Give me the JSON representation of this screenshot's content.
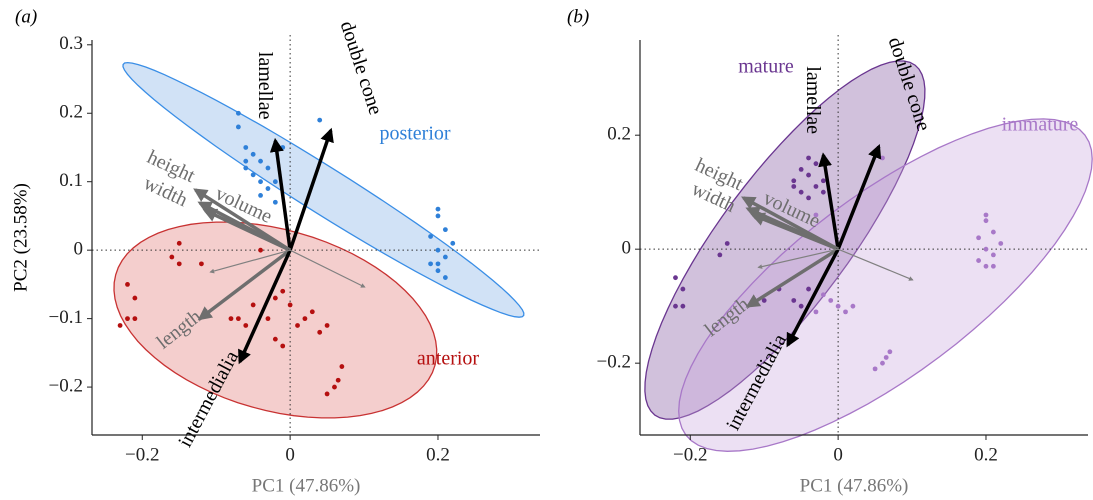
{
  "chart_data": [
    {
      "type": "biplot",
      "panel_label": "(a)",
      "xlabel": "PC1 (47.86%)",
      "ylabel": "PC2 (23.58%)",
      "xlim": [
        -0.268,
        0.338
      ],
      "ylim": [
        -0.27,
        0.307
      ],
      "xticks": [
        {
          "value": -0.2,
          "label": "−0.2"
        },
        0,
        0.2
      ],
      "yticks": [
        {
          "value": -0.2,
          "label": "−0.2"
        },
        {
          "value": -0.1,
          "label": "−0.1"
        },
        0,
        0.1,
        0.2,
        0.3
      ],
      "zero_lines": true,
      "series": [
        {
          "name": "posterior",
          "color": "#2f80d8",
          "fill": "#c9ddf4",
          "stroke": "#3a8ee6",
          "x": [
            -0.07,
            -0.07,
            -0.06,
            -0.05,
            -0.04,
            -0.06,
            -0.03,
            -0.05,
            -0.04,
            -0.02,
            -0.03,
            -0.04,
            -0.02,
            -0.06,
            -0.01,
            0.04,
            0.2,
            0.2,
            0.21,
            0.19,
            0.22,
            0.2,
            0.21,
            0.19,
            0.2,
            0.21,
            0.2
          ],
          "y": [
            0.2,
            0.18,
            0.15,
            0.14,
            0.13,
            0.13,
            0.12,
            0.11,
            0.1,
            0.1,
            0.09,
            0.08,
            0.07,
            0.12,
            0.15,
            0.19,
            0.06,
            0.05,
            0.03,
            0.02,
            0.01,
            0.0,
            -0.01,
            -0.02,
            -0.03,
            -0.04,
            -0.02
          ],
          "ellipse": {
            "cx": 0.045,
            "cy": 0.088,
            "ax": 0.269,
            "ay": -0.175,
            "bx": -0.035,
            "by": 0.063
          }
        },
        {
          "name": "anterior",
          "color": "#b50f0f",
          "fill": "#f2c6c4",
          "stroke": "#c83232",
          "x": [
            -0.15,
            -0.16,
            -0.15,
            -0.12,
            -0.22,
            -0.21,
            -0.22,
            -0.21,
            -0.23,
            -0.08,
            -0.07,
            -0.06,
            -0.05,
            -0.03,
            -0.02,
            -0.01,
            0.0,
            0.01,
            0.02,
            0.03,
            0.05,
            0.04,
            -0.01,
            -0.02,
            0.07,
            0.065,
            0.06,
            0.05,
            -0.04
          ],
          "y": [
            0.01,
            -0.01,
            -0.02,
            -0.02,
            -0.05,
            -0.07,
            -0.1,
            -0.1,
            -0.11,
            -0.1,
            -0.1,
            -0.11,
            -0.08,
            -0.1,
            -0.07,
            -0.06,
            -0.08,
            -0.11,
            -0.1,
            -0.09,
            -0.11,
            -0.12,
            -0.14,
            -0.13,
            -0.17,
            -0.19,
            -0.2,
            -0.21,
            0.0
          ],
          "ellipse": {
            "cx": -0.02,
            "cy": -0.102,
            "ax": 0.216,
            "ay": -0.066,
            "bx": -0.032,
            "by": -0.127
          }
        }
      ],
      "loadings": [
        {
          "name": "lamellae",
          "x": -0.02,
          "y": 0.16,
          "color": "#000000",
          "weight": "bold"
        },
        {
          "name": "double cone",
          "x": 0.055,
          "y": 0.175,
          "color": "#000000",
          "weight": "bold"
        },
        {
          "name": "height",
          "x": -0.128,
          "y": 0.088,
          "color": "#6e6e6e",
          "weight": "bold"
        },
        {
          "name": "width",
          "x": -0.122,
          "y": 0.069,
          "color": "#6e6e6e",
          "weight": "bold"
        },
        {
          "name": "volume",
          "x": -0.115,
          "y": 0.058,
          "color": "#6e6e6e",
          "weight": "bold"
        },
        {
          "name": "length",
          "x": -0.122,
          "y": -0.1,
          "color": "#6e6e6e",
          "weight": "bold"
        },
        {
          "name": "intermedialia",
          "x": -0.068,
          "y": -0.163,
          "color": "#000000",
          "weight": "bold"
        },
        {
          "x": -0.108,
          "y": -0.032,
          "color": "#808080",
          "weight": "thin"
        },
        {
          "x": 0.101,
          "y": -0.054,
          "color": "#808080",
          "weight": "thin"
        }
      ]
    },
    {
      "type": "biplot",
      "panel_label": "(b)",
      "xlabel": "PC1 (47.86%)",
      "xlim": [
        -0.268,
        0.338
      ],
      "ylim": [
        -0.326,
        0.367
      ],
      "xticks": [
        {
          "value": -0.2,
          "label": "−0.2"
        },
        0,
        0.2
      ],
      "yticks": [
        {
          "value": -0.2,
          "label": "−0.2"
        },
        0,
        0.2
      ],
      "zero_lines": true,
      "series": [
        {
          "name": "mature",
          "color": "#6a3690",
          "fill": "#7b4d9a",
          "stroke": "#6a3690",
          "x": [
            -0.04,
            -0.03,
            -0.05,
            -0.04,
            -0.02,
            -0.06,
            -0.03,
            -0.05,
            -0.02,
            -0.04,
            -0.06,
            -0.22,
            -0.21,
            -0.22,
            -0.21,
            -0.15,
            -0.16,
            -0.08,
            -0.06,
            -0.05,
            -0.04,
            -0.1
          ],
          "y": [
            0.16,
            0.15,
            0.14,
            0.13,
            0.12,
            0.12,
            0.11,
            0.1,
            0.1,
            0.09,
            0.11,
            -0.05,
            -0.07,
            -0.1,
            -0.1,
            0.01,
            -0.01,
            -0.07,
            -0.09,
            -0.1,
            -0.07,
            -0.09
          ],
          "ellipse": {
            "cx": -0.072,
            "cy": 0.016,
            "ax": 0.176,
            "ay": 0.307,
            "bx": 0.07,
            "by": -0.068
          }
        },
        {
          "name": "immature",
          "color": "#a878c8",
          "fill": "#c9a6de",
          "stroke": "#a878c8",
          "x": [
            0.05,
            0.06,
            -0.03,
            0.2,
            0.2,
            0.21,
            0.19,
            0.22,
            0.2,
            0.21,
            0.19,
            0.2,
            0.21,
            -0.02,
            0.0,
            0.01,
            0.02,
            0.07,
            0.065,
            0.06,
            0.05,
            -0.03,
            -0.01
          ],
          "y": [
            0.17,
            0.16,
            0.06,
            0.06,
            0.05,
            0.03,
            0.02,
            0.01,
            0.0,
            -0.01,
            -0.02,
            -0.03,
            -0.03,
            -0.08,
            -0.1,
            -0.11,
            -0.1,
            -0.18,
            -0.19,
            -0.2,
            -0.21,
            -0.11,
            -0.09
          ],
          "ellipse": {
            "cx": 0.064,
            "cy": -0.063,
            "ax": 0.27,
            "ay": 0.263,
            "bx": 0.073,
            "by": -0.126
          }
        }
      ],
      "loadings": [
        {
          "name": "lamellae",
          "x": -0.02,
          "y": 0.165,
          "color": "#000000",
          "weight": "bold"
        },
        {
          "name": "double cone",
          "x": 0.055,
          "y": 0.18,
          "color": "#000000",
          "weight": "bold"
        },
        {
          "name": "height",
          "x": -0.128,
          "y": 0.09,
          "color": "#6e6e6e",
          "weight": "bold"
        },
        {
          "name": "width",
          "x": -0.122,
          "y": 0.071,
          "color": "#6e6e6e",
          "weight": "bold"
        },
        {
          "name": "volume",
          "x": -0.115,
          "y": 0.06,
          "color": "#6e6e6e",
          "weight": "bold"
        },
        {
          "name": "length",
          "x": -0.122,
          "y": -0.1,
          "color": "#6e6e6e",
          "weight": "bold"
        },
        {
          "name": "intermedialia",
          "x": -0.068,
          "y": -0.168,
          "color": "#000000",
          "weight": "bold"
        },
        {
          "x": -0.108,
          "y": -0.032,
          "color": "#808080",
          "weight": "thin"
        },
        {
          "x": 0.101,
          "y": -0.054,
          "color": "#808080",
          "weight": "thin"
        }
      ]
    }
  ]
}
